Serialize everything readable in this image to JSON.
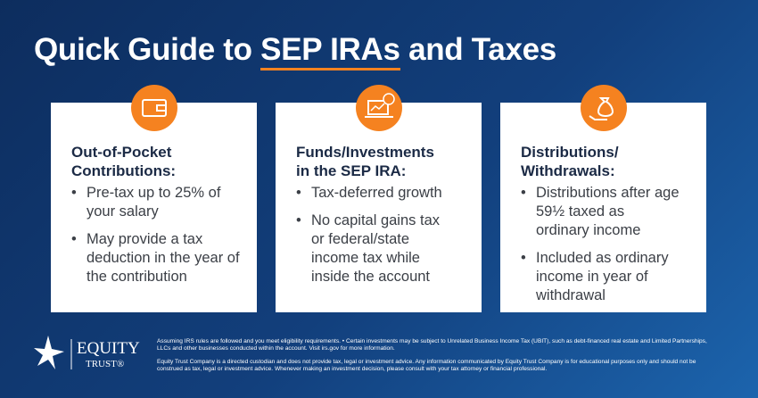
{
  "header": {
    "title_start": "Quick Guide to",
    "title_highlight": "SEP IRAs",
    "title_end": "and Taxes"
  },
  "cards": [
    {
      "heading": "Out-of-Pocket Contributions:",
      "bullets": [
        "Pre-tax up to 25% of your salary",
        "May provide a tax deduction in the year of the contribution"
      ]
    },
    {
      "heading": "Funds/Investments in the SEP IRA:",
      "bullets": [
        "Tax-deferred growth",
        "No capital gains tax or federal/state income tax while inside the account"
      ]
    },
    {
      "heading": "Distributions/ Withdrawals:",
      "bullets": [
        "Distributions after age 59½ taxed as ordinary income",
        "Included as ordinary income in year of withdrawal"
      ]
    }
  ],
  "footer": {
    "logo_name": "EQUITY",
    "logo_sub": "TRUST®",
    "disclaimer_1": "Assuming IRS rules are followed and you meet eligibility requirements.  •  Certain investments may be subject to Unrelated Business Income Tax (UBIT), such as debt-financed real estate and Limited Partnerships, LLCs and other businesses conducted within the account. Visit irs.gov for more information.",
    "disclaimer_2": "Equity Trust Company is a directed custodian and does not provide tax, legal or investment advice. Any information communicated by Equity Trust Company is for educational purposes only and should not be construed as tax, legal or investment advice. Whenever making an investment decision, please consult with your tax attorney or financial professional."
  }
}
